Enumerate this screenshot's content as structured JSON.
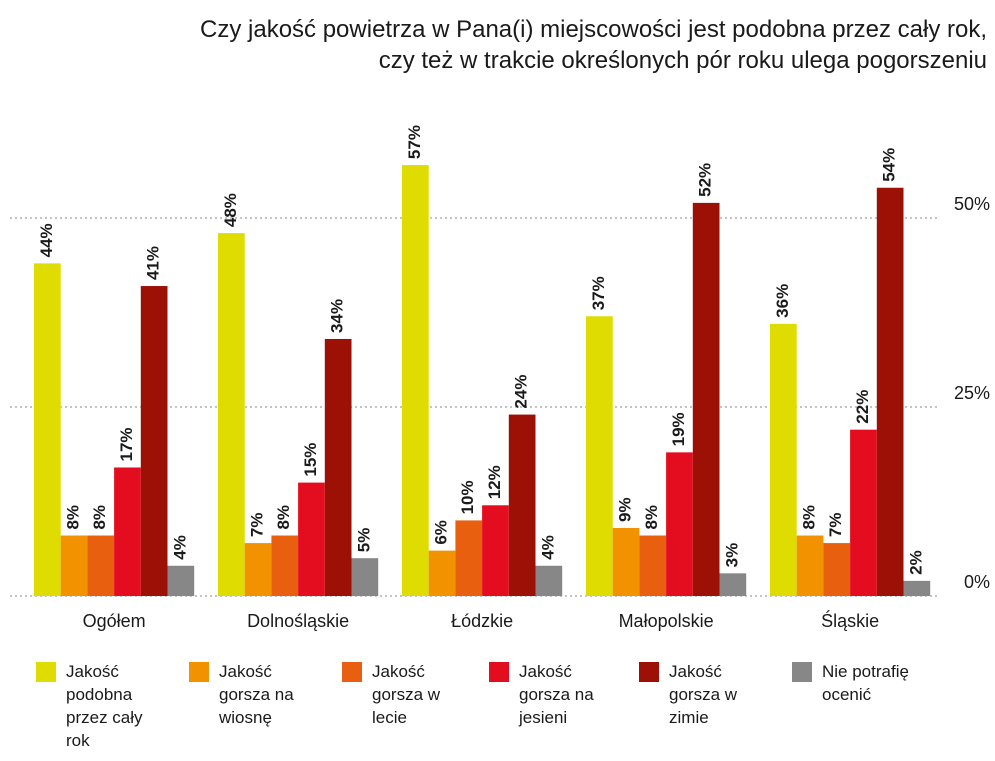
{
  "chart_data": {
    "type": "bar",
    "title": "Czy jakość powietrza w Pana(i) miejscowości jest podobna przez cały rok,\nczy też w trakcie określonych pór roku ulega pogorszeniu",
    "categories": [
      "Ogółem",
      "Dolnośląskie",
      "Łódzkie",
      "Małopolskie",
      "Śląskie"
    ],
    "series": [
      {
        "name": "Jakość podobna przez cały rok",
        "color": "#dedc00",
        "values": [
          44,
          48,
          57,
          37,
          36
        ],
        "value_labels": [
          "44%",
          "48%",
          "57%",
          "37%",
          "36%"
        ]
      },
      {
        "name": "Jakość gorsza na wiosnę",
        "color": "#f39200",
        "values": [
          8,
          7,
          6,
          9,
          8
        ],
        "value_labels": [
          "8%",
          "7%",
          "6%",
          "9%",
          "8%"
        ]
      },
      {
        "name": "Jakość gorsza w lecie",
        "color": "#e8600f",
        "values": [
          8,
          8,
          10,
          8,
          7
        ],
        "value_labels": [
          "8%",
          "8%",
          "10%",
          "8%",
          "7%"
        ]
      },
      {
        "name": "Jakość gorsza na jesieni",
        "color": "#e30d1f",
        "values": [
          17,
          15,
          12,
          19,
          22
        ],
        "value_labels": [
          "17%",
          "15%",
          "12%",
          "19%",
          "22%"
        ]
      },
      {
        "name": "Jakość gorsza w zimie",
        "color": "#9c1006",
        "values": [
          41,
          34,
          24,
          52,
          54
        ],
        "value_labels": [
          "41%",
          "34%",
          "24%",
          "52%",
          "54%"
        ]
      },
      {
        "name": "Nie potrafię ocenić",
        "color": "#878787",
        "values": [
          4,
          5,
          4,
          3,
          2
        ],
        "value_labels": [
          "4%",
          "5%",
          "4%",
          "3%",
          "2%"
        ]
      }
    ],
    "ylim": [
      0,
      60
    ],
    "yticks": [
      {
        "value": 0,
        "label": "0%"
      },
      {
        "value": 25,
        "label": "25%"
      },
      {
        "value": 50,
        "label": "50%"
      }
    ],
    "grid": true
  }
}
